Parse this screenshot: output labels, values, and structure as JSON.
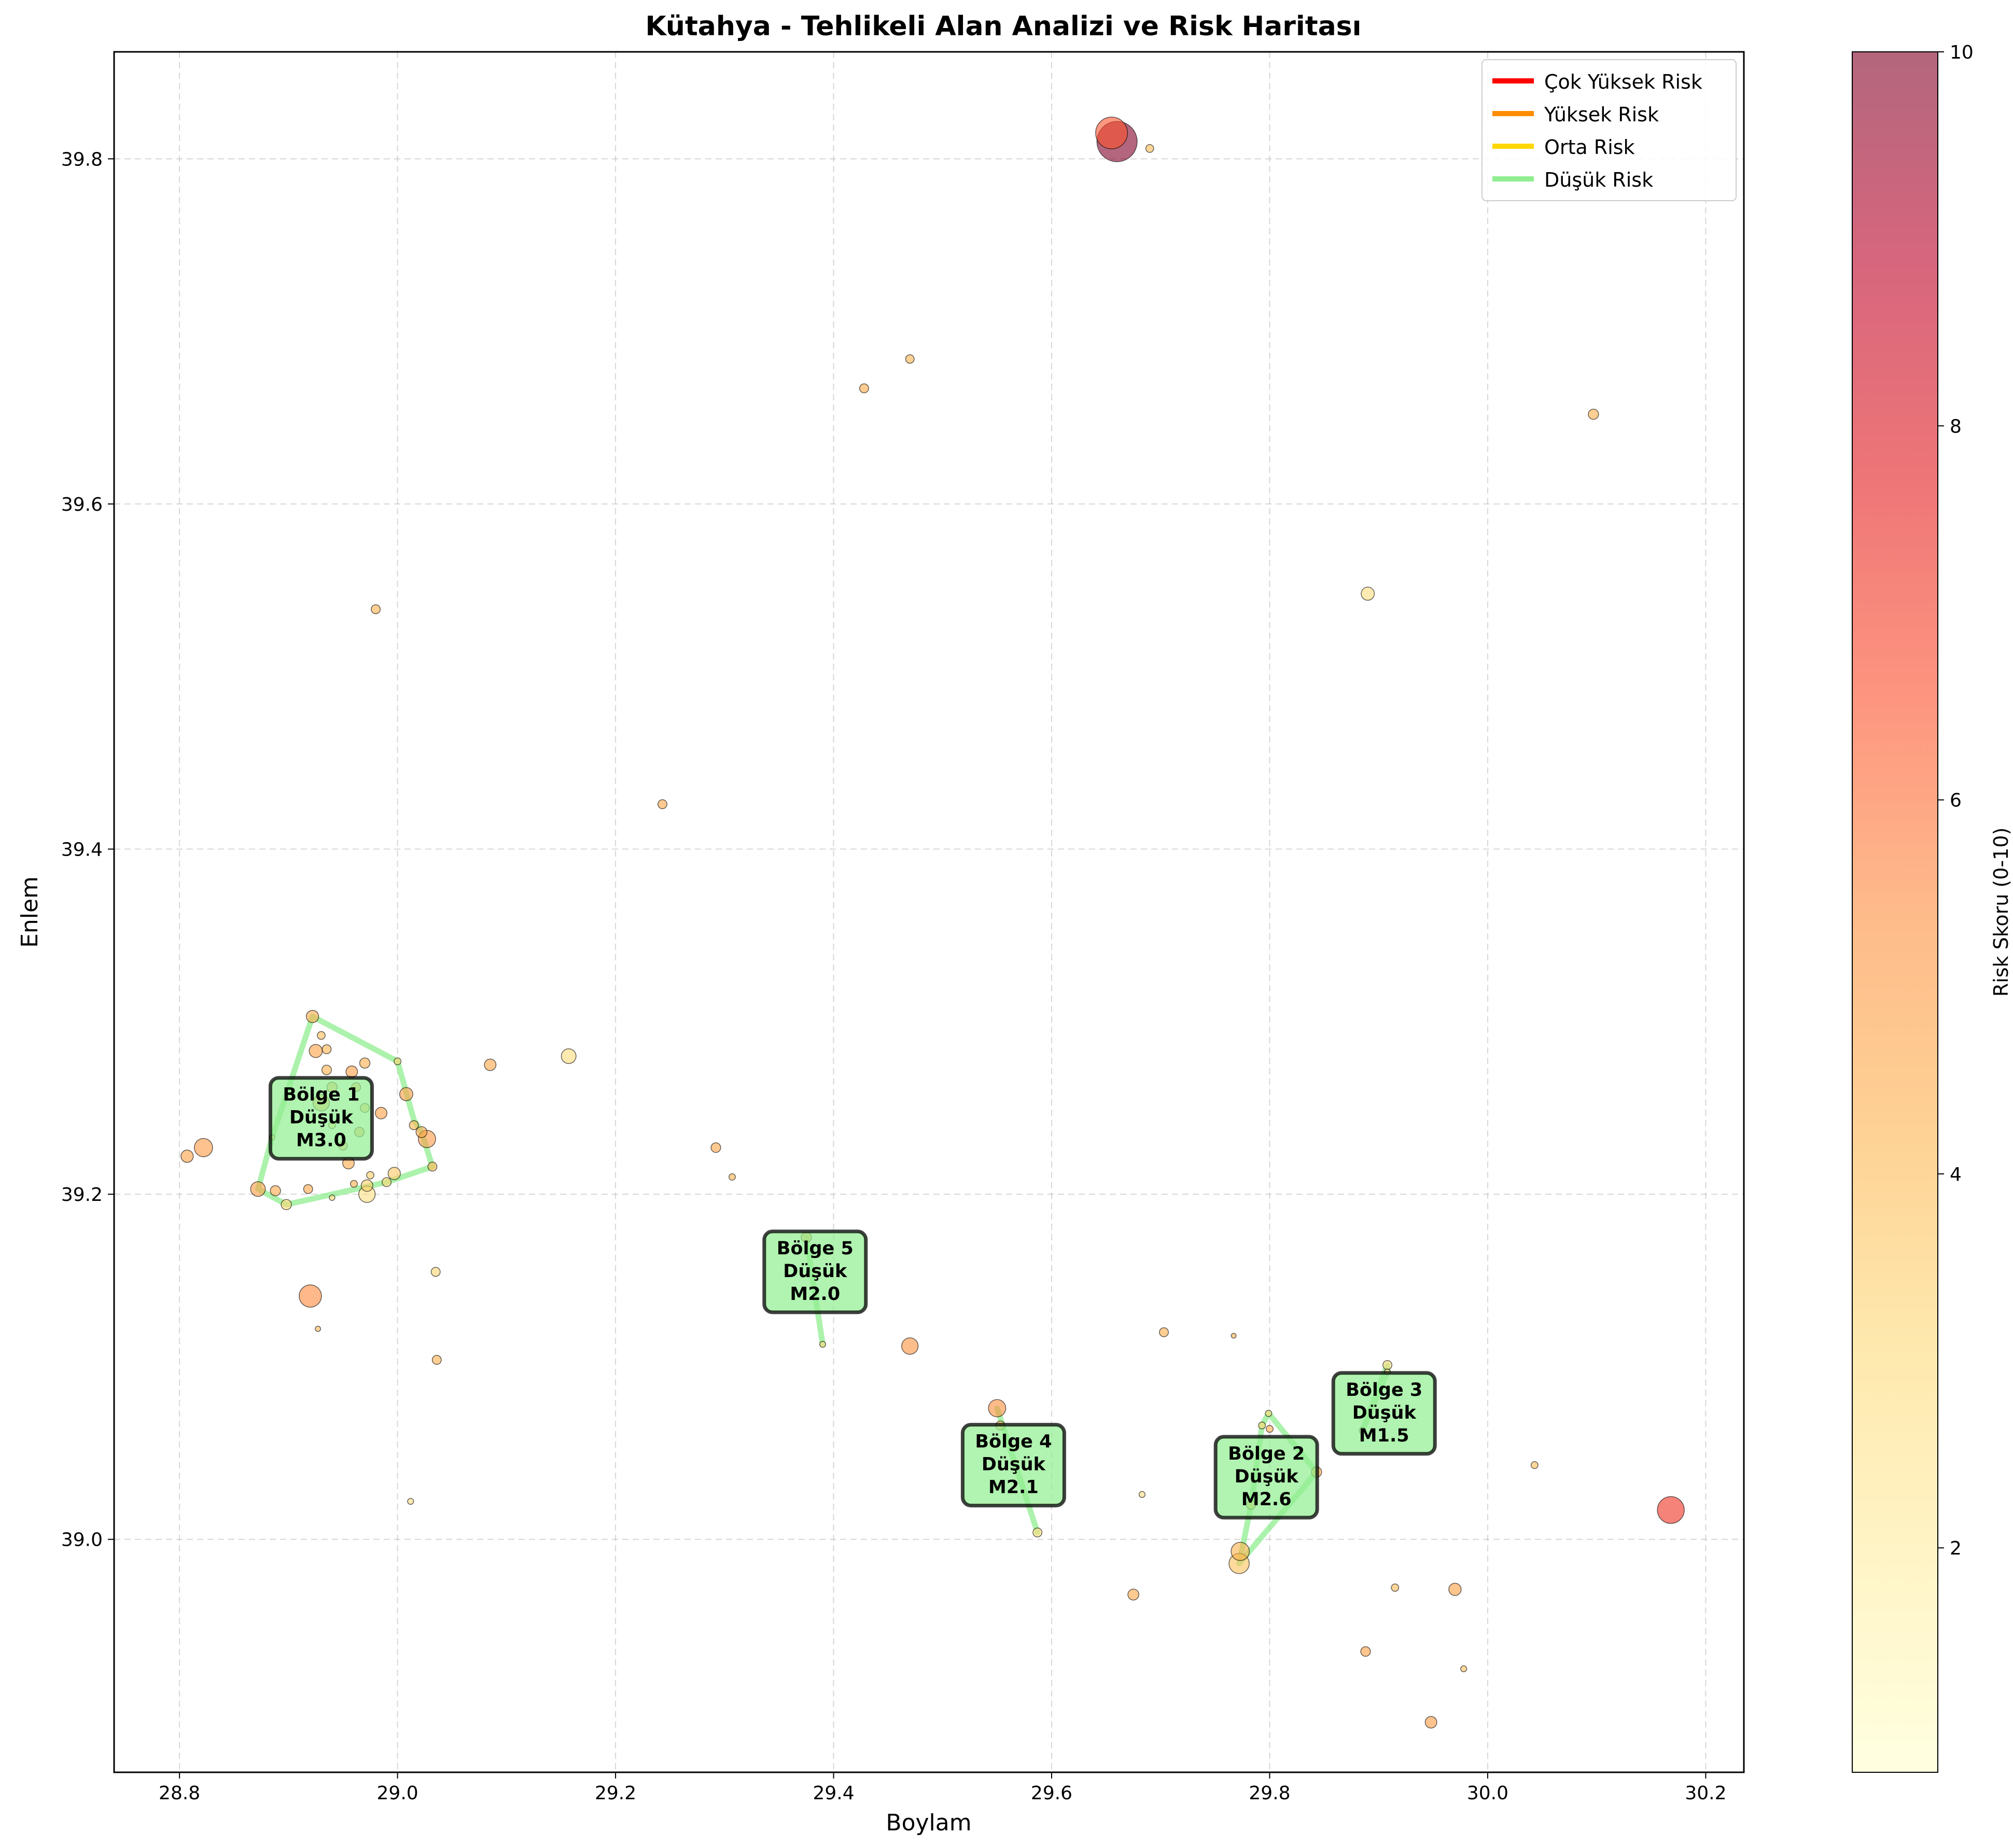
{
  "chart_data": {
    "type": "scatter",
    "title": "Kütahya - Tehlikeli Alan Analizi ve Risk Haritası",
    "xlabel": "Boylam",
    "ylabel": "Enlem",
    "xlim": [
      28.74,
      30.235
    ],
    "ylim": [
      38.865,
      39.862
    ],
    "xticks": [
      "28.8",
      "29.0",
      "29.2",
      "29.4",
      "29.6",
      "29.8",
      "30.0",
      "30.2"
    ],
    "yticks": [
      "39.0",
      "39.2",
      "39.4",
      "39.6",
      "39.8"
    ],
    "grid": true,
    "legend_position": "top-right",
    "legend": [
      {
        "label": "Çok Yüksek Risk",
        "color": "#ff0000"
      },
      {
        "label": "Yüksek Risk",
        "color": "#ff8c00"
      },
      {
        "label": "Orta Risk",
        "color": "#ffd700"
      },
      {
        "label": "Düşük Risk",
        "color": "#90ee90"
      }
    ],
    "colorbar": {
      "label": "Risk Skoru (0-10)",
      "range": [
        0.8,
        10
      ],
      "ticks": [
        "2",
        "4",
        "6",
        "8",
        "10"
      ],
      "colormap": "YlOrRd",
      "alpha": 0.6
    },
    "points": [
      {
        "x": 29.66,
        "y": 39.81,
        "risk": 10,
        "mag": 5.0
      },
      {
        "x": 29.655,
        "y": 39.815,
        "risk": 6.5,
        "mag": 4.4
      },
      {
        "x": 29.69,
        "y": 39.806,
        "risk": 4.0,
        "mag": 1.8
      },
      {
        "x": 29.47,
        "y": 39.684,
        "risk": 4.2,
        "mag": 1.9
      },
      {
        "x": 29.428,
        "y": 39.667,
        "risk": 4.5,
        "mag": 2.0
      },
      {
        "x": 30.097,
        "y": 39.652,
        "risk": 4.4,
        "mag": 2.2
      },
      {
        "x": 28.98,
        "y": 39.539,
        "risk": 4.3,
        "mag": 2.0
      },
      {
        "x": 29.89,
        "y": 39.548,
        "risk": 2.8,
        "mag": 2.6
      },
      {
        "x": 29.243,
        "y": 39.426,
        "risk": 4.6,
        "mag": 2.0
      },
      {
        "x": 29.157,
        "y": 39.28,
        "risk": 3.0,
        "mag": 2.8
      },
      {
        "x": 29.085,
        "y": 39.275,
        "risk": 4.6,
        "mag": 2.4
      },
      {
        "x": 28.807,
        "y": 39.222,
        "risk": 4.8,
        "mag": 2.5
      },
      {
        "x": 28.822,
        "y": 39.227,
        "risk": 5.0,
        "mag": 3.2
      },
      {
        "x": 28.922,
        "y": 39.303,
        "risk": 4.5,
        "mag": 2.5
      },
      {
        "x": 28.93,
        "y": 39.292,
        "risk": 4.0,
        "mag": 1.8
      },
      {
        "x": 28.935,
        "y": 39.284,
        "risk": 4.2,
        "mag": 2.0
      },
      {
        "x": 28.925,
        "y": 39.283,
        "risk": 4.8,
        "mag": 2.6
      },
      {
        "x": 28.97,
        "y": 39.276,
        "risk": 4.4,
        "mag": 2.2
      },
      {
        "x": 28.935,
        "y": 39.272,
        "risk": 4.3,
        "mag": 2.1
      },
      {
        "x": 28.958,
        "y": 39.271,
        "risk": 4.9,
        "mag": 2.4
      },
      {
        "x": 28.94,
        "y": 39.262,
        "risk": 4.6,
        "mag": 2.2
      },
      {
        "x": 28.962,
        "y": 39.262,
        "risk": 4.4,
        "mag": 2.0
      },
      {
        "x": 29.0,
        "y": 39.277,
        "risk": 3.2,
        "mag": 1.6
      },
      {
        "x": 29.008,
        "y": 39.258,
        "risk": 4.9,
        "mag": 2.6
      },
      {
        "x": 28.93,
        "y": 39.253,
        "risk": 4.5,
        "mag": 3.0
      },
      {
        "x": 28.97,
        "y": 39.25,
        "risk": 4.0,
        "mag": 2.0
      },
      {
        "x": 28.985,
        "y": 39.247,
        "risk": 4.8,
        "mag": 2.4
      },
      {
        "x": 29.015,
        "y": 39.24,
        "risk": 4.2,
        "mag": 2.0
      },
      {
        "x": 28.94,
        "y": 39.24,
        "risk": 3.0,
        "mag": 1.6
      },
      {
        "x": 28.965,
        "y": 39.236,
        "risk": 4.4,
        "mag": 2.1
      },
      {
        "x": 29.027,
        "y": 39.232,
        "risk": 5.0,
        "mag": 3.1
      },
      {
        "x": 29.022,
        "y": 39.236,
        "risk": 4.6,
        "mag": 2.3
      },
      {
        "x": 28.95,
        "y": 39.228,
        "risk": 4.0,
        "mag": 1.9
      },
      {
        "x": 28.885,
        "y": 39.233,
        "risk": 3.0,
        "mag": 1.2
      },
      {
        "x": 28.955,
        "y": 39.218,
        "risk": 4.5,
        "mag": 2.4
      },
      {
        "x": 29.032,
        "y": 39.216,
        "risk": 4.2,
        "mag": 2.0
      },
      {
        "x": 28.997,
        "y": 39.212,
        "risk": 3.6,
        "mag": 2.5
      },
      {
        "x": 28.975,
        "y": 39.211,
        "risk": 3.5,
        "mag": 1.7
      },
      {
        "x": 28.96,
        "y": 39.206,
        "risk": 4.4,
        "mag": 1.6
      },
      {
        "x": 28.99,
        "y": 39.207,
        "risk": 3.2,
        "mag": 2.0
      },
      {
        "x": 28.872,
        "y": 39.203,
        "risk": 4.9,
        "mag": 2.8
      },
      {
        "x": 28.888,
        "y": 39.202,
        "risk": 4.6,
        "mag": 2.2
      },
      {
        "x": 28.918,
        "y": 39.203,
        "risk": 4.6,
        "mag": 2.0
      },
      {
        "x": 28.972,
        "y": 39.205,
        "risk": 3.4,
        "mag": 2.4
      },
      {
        "x": 28.972,
        "y": 39.2,
        "risk": 2.8,
        "mag": 3.0
      },
      {
        "x": 28.94,
        "y": 39.198,
        "risk": 3.0,
        "mag": 1.3
      },
      {
        "x": 28.898,
        "y": 39.194,
        "risk": 3.2,
        "mag": 2.2
      },
      {
        "x": 28.92,
        "y": 39.141,
        "risk": 5.5,
        "mag": 3.6
      },
      {
        "x": 28.927,
        "y": 39.122,
        "risk": 4.0,
        "mag": 1.2
      },
      {
        "x": 29.035,
        "y": 39.155,
        "risk": 3.2,
        "mag": 2.0
      },
      {
        "x": 29.036,
        "y": 39.104,
        "risk": 4.4,
        "mag": 2.0
      },
      {
        "x": 29.012,
        "y": 39.022,
        "risk": 2.8,
        "mag": 1.4
      },
      {
        "x": 29.292,
        "y": 39.227,
        "risk": 4.6,
        "mag": 2.1
      },
      {
        "x": 29.307,
        "y": 39.21,
        "risk": 4.2,
        "mag": 1.5
      },
      {
        "x": 29.375,
        "y": 39.175,
        "risk": 4.5,
        "mag": 2.2
      },
      {
        "x": 29.39,
        "y": 39.113,
        "risk": 3.0,
        "mag": 1.4
      },
      {
        "x": 29.47,
        "y": 39.112,
        "risk": 5.2,
        "mag": 3.0
      },
      {
        "x": 29.55,
        "y": 39.076,
        "risk": 5.4,
        "mag": 3.1
      },
      {
        "x": 29.553,
        "y": 39.066,
        "risk": 4.0,
        "mag": 2.0
      },
      {
        "x": 29.587,
        "y": 39.004,
        "risk": 3.0,
        "mag": 2.0
      },
      {
        "x": 29.703,
        "y": 39.12,
        "risk": 4.4,
        "mag": 2.0
      },
      {
        "x": 29.683,
        "y": 39.026,
        "risk": 2.8,
        "mag": 1.4
      },
      {
        "x": 29.675,
        "y": 38.968,
        "risk": 4.6,
        "mag": 2.3
      },
      {
        "x": 29.767,
        "y": 39.118,
        "risk": 4.2,
        "mag": 1.1
      },
      {
        "x": 29.793,
        "y": 39.066,
        "risk": 3.2,
        "mag": 1.6
      },
      {
        "x": 29.799,
        "y": 39.073,
        "risk": 3.0,
        "mag": 1.5
      },
      {
        "x": 29.8,
        "y": 39.064,
        "risk": 4.4,
        "mag": 1.6
      },
      {
        "x": 29.843,
        "y": 39.039,
        "risk": 4.6,
        "mag": 2.2
      },
      {
        "x": 29.783,
        "y": 39.02,
        "risk": 4.2,
        "mag": 2.0
      },
      {
        "x": 29.773,
        "y": 38.993,
        "risk": 4.3,
        "mag": 3.2
      },
      {
        "x": 29.772,
        "y": 38.986,
        "risk": 3.8,
        "mag": 3.4
      },
      {
        "x": 29.908,
        "y": 39.101,
        "risk": 3.0,
        "mag": 2.0
      },
      {
        "x": 29.908,
        "y": 39.097,
        "risk": 2.6,
        "mag": 1.4
      },
      {
        "x": 29.885,
        "y": 39.063,
        "risk": 3.2,
        "mag": 1.5
      },
      {
        "x": 29.915,
        "y": 38.972,
        "risk": 4.0,
        "mag": 1.7
      },
      {
        "x": 29.97,
        "y": 38.971,
        "risk": 4.8,
        "mag": 2.5
      },
      {
        "x": 29.888,
        "y": 38.935,
        "risk": 4.8,
        "mag": 2.1
      },
      {
        "x": 29.978,
        "y": 38.925,
        "risk": 3.8,
        "mag": 1.4
      },
      {
        "x": 29.948,
        "y": 38.894,
        "risk": 5.0,
        "mag": 2.4
      },
      {
        "x": 30.043,
        "y": 39.043,
        "risk": 4.0,
        "mag": 1.6
      },
      {
        "x": 30.168,
        "y": 39.017,
        "risk": 7.2,
        "mag": 4.0
      }
    ],
    "zones": [
      {
        "label": "Bölge 1",
        "level": "Düşük",
        "mag": "M3.0",
        "x": 28.93,
        "y": 39.244,
        "hull": [
          [
            28.922,
            39.303
          ],
          [
            29.0,
            39.277
          ],
          [
            29.015,
            39.243
          ],
          [
            29.022,
            39.236
          ],
          [
            29.032,
            39.216
          ],
          [
            28.99,
            39.207
          ],
          [
            28.898,
            39.194
          ],
          [
            28.872,
            39.203
          ],
          [
            28.885,
            39.233
          ],
          [
            28.922,
            39.303
          ]
        ]
      },
      {
        "label": "Bölge 5",
        "level": "Düşük",
        "mag": "M2.0",
        "x": 29.383,
        "y": 39.155,
        "hull": [
          [
            29.375,
            39.175
          ],
          [
            29.39,
            39.113
          ]
        ]
      },
      {
        "label": "Bölge 4",
        "level": "Düşük",
        "mag": "M2.1",
        "x": 29.565,
        "y": 39.043,
        "hull": [
          [
            29.55,
            39.076
          ],
          [
            29.587,
            39.004
          ]
        ]
      },
      {
        "label": "Bölge 2",
        "level": "Düşük",
        "mag": "M2.6",
        "x": 29.797,
        "y": 39.036,
        "hull": [
          [
            29.793,
            39.066
          ],
          [
            29.799,
            39.073
          ],
          [
            29.843,
            39.039
          ],
          [
            29.772,
            38.986
          ],
          [
            29.783,
            39.02
          ],
          [
            29.793,
            39.066
          ]
        ]
      },
      {
        "label": "Bölge 3",
        "level": "Düşük",
        "mag": "M1.5",
        "x": 29.905,
        "y": 39.073,
        "hull": [
          [
            29.908,
            39.101
          ],
          [
            29.885,
            39.063
          ],
          [
            29.908,
            39.097
          ],
          [
            29.908,
            39.101
          ]
        ]
      }
    ]
  }
}
